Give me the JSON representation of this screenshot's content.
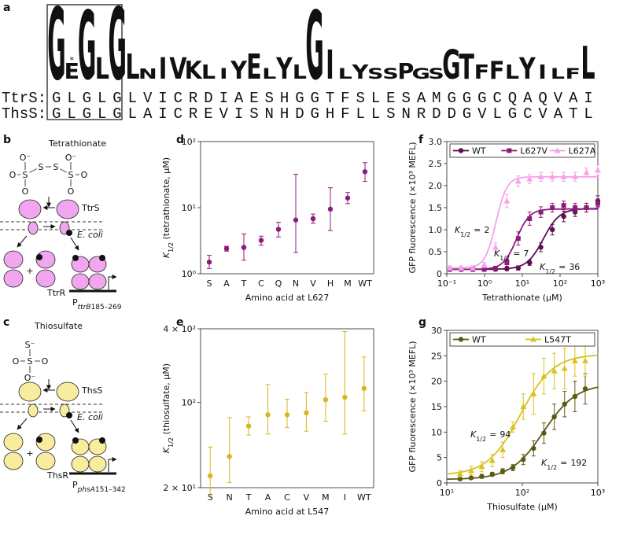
{
  "panel_labels": [
    "a",
    "b",
    "c",
    "d",
    "e",
    "f",
    "g"
  ],
  "sequence_panel": {
    "star": "*",
    "logo": [
      {
        "letter": "G",
        "height": 1.0,
        "color": "#e3dc1c"
      },
      {
        "letter": "E",
        "height": 0.22,
        "color": "#d93a2a"
      },
      {
        "letter": "G",
        "height": 0.95,
        "color": "#e3dc1c"
      },
      {
        "letter": "L",
        "height": 0.3,
        "color": "#e8a428"
      },
      {
        "letter": "G",
        "height": 1.0,
        "color": "#e3dc1c"
      },
      {
        "letter": "L",
        "height": 0.35,
        "color": "#e8a428"
      },
      {
        "letter": "N",
        "height": 0.14,
        "color": "#5a9a5a"
      },
      {
        "letter": "I",
        "height": 0.3,
        "color": "#e8a428"
      },
      {
        "letter": "V",
        "height": 0.3,
        "color": "#e8a428"
      },
      {
        "letter": "K",
        "height": 0.25,
        "color": "#8b3a1a"
      },
      {
        "letter": "L",
        "height": 0.2,
        "color": "#e8a428"
      },
      {
        "letter": "I",
        "height": 0.15,
        "color": "#e8a428"
      },
      {
        "letter": "Y",
        "height": 0.25,
        "color": "#e8a428"
      },
      {
        "letter": "E",
        "height": 0.35,
        "color": "#d93a2a"
      },
      {
        "letter": "L",
        "height": 0.15,
        "color": "#e8a428"
      },
      {
        "letter": "Y",
        "height": 0.3,
        "color": "#1a6a3a"
      },
      {
        "letter": "L",
        "height": 0.2,
        "color": "#e8a428"
      },
      {
        "letter": "G",
        "height": 0.95,
        "color": "#e3dc1c"
      },
      {
        "letter": "I",
        "height": 0.4,
        "color": "#e8a428"
      },
      {
        "letter": "L",
        "height": 0.15,
        "color": "#e8a428"
      },
      {
        "letter": "Y",
        "height": 0.2,
        "color": "#e8a428"
      },
      {
        "letter": "S",
        "height": 0.15,
        "color": "#5a7ac8"
      },
      {
        "letter": "S",
        "height": 0.15,
        "color": "#5a7ac8"
      },
      {
        "letter": "P",
        "height": 0.22,
        "color": "#6a8ad0"
      },
      {
        "letter": "G",
        "height": 0.15,
        "color": "#e3dc1c"
      },
      {
        "letter": "S",
        "height": 0.15,
        "color": "#5a7ac8"
      },
      {
        "letter": "G",
        "height": 0.4,
        "color": "#e3dc1c"
      },
      {
        "letter": "T",
        "height": 0.35,
        "color": "#3aa0b8"
      },
      {
        "letter": "F",
        "height": 0.2,
        "color": "#e8a428"
      },
      {
        "letter": "F",
        "height": 0.25,
        "color": "#9ac83a"
      },
      {
        "letter": "L",
        "height": 0.2,
        "color": "#e8a428"
      },
      {
        "letter": "Y",
        "height": 0.3,
        "color": "#e8a428"
      },
      {
        "letter": "I",
        "height": 0.2,
        "color": "#e8a428"
      },
      {
        "letter": "L",
        "height": 0.15,
        "color": "#e8a428"
      },
      {
        "letter": "F",
        "height": 0.15,
        "color": "#9ac83a"
      },
      {
        "letter": "L",
        "height": 0.45,
        "color": "#e8a428"
      }
    ],
    "rows": [
      {
        "name": "TtrS:",
        "sequence": "GLGLGLVICRDIAESHGGTFSLESAMGGGCQAQVAI"
      },
      {
        "name": "ThsS:",
        "sequence": "GLGLGLAICREVISNHDGHFLLSNRDDGVLGCVATL"
      }
    ]
  },
  "diagrams": [
    {
      "title": "Tetrathionate",
      "color": "#f2a6f0",
      "atoms": [
        "O⁻",
        "O",
        "S",
        "O",
        "S",
        "S",
        "S",
        "O⁻",
        "O",
        "O"
      ],
      "sensor": "TtrS",
      "membrane": "E. coli",
      "plus": "+",
      "regulator": "TtrR",
      "promoter": {
        "prefix": "P",
        "subscript": "ttrB",
        "suffix": "185–269"
      }
    },
    {
      "title": "Thiosulfate",
      "color": "#f8ec9e",
      "atoms": [
        "S⁻",
        "O",
        "S",
        "O",
        "O⁻"
      ],
      "sensor": "ThsS",
      "membrane": "E. coli",
      "plus": "+",
      "regulator": "ThsR",
      "promoter": {
        "prefix": "P",
        "subscript": "phsA",
        "suffix": "151–342"
      }
    }
  ],
  "chart_data": [
    {
      "type": "dot",
      "categories": [
        "S",
        "A",
        "T",
        "C",
        "Q",
        "N",
        "V",
        "H",
        "M",
        "WT"
      ],
      "values": [
        1.5,
        2.4,
        2.5,
        3.2,
        4.7,
        6.5,
        6.8,
        9.5,
        14,
        35
      ],
      "lower": [
        1.2,
        2.2,
        1.6,
        2.7,
        3.6,
        2.1,
        5.8,
        4.5,
        11.5,
        25
      ],
      "upper": [
        1.9,
        2.6,
        4,
        3.7,
        6,
        32,
        8,
        20,
        17,
        48
      ],
      "color": "#8e1b7c",
      "yscale": "log",
      "ylim": [
        1,
        100
      ],
      "yticks": [
        {
          "value": 1,
          "label": "10⁰"
        },
        {
          "value": 10,
          "label": "10¹"
        },
        {
          "value": 100,
          "label": "10²"
        }
      ],
      "xlabel": "Amino acid at L627",
      "ylabel": {
        "symbol": "K",
        "subscript": "1/2",
        "text": " (tetrathionate, µM)"
      }
    },
    {
      "type": "dot",
      "categories": [
        "S",
        "N",
        "T",
        "A",
        "C",
        "V",
        "M",
        "I",
        "WT"
      ],
      "values": [
        25,
        36,
        64,
        79,
        79,
        82,
        105,
        110,
        130
      ],
      "lower": [
        17,
        22,
        54,
        55,
        62,
        58,
        70,
        55,
        85
      ],
      "upper": [
        43,
        75,
        76,
        140,
        106,
        120,
        170,
        380,
        235
      ],
      "color": "#d8b61c",
      "yscale": "log",
      "ylim": [
        20,
        400
      ],
      "yticks": [
        {
          "value": 20,
          "label": "2 × 10¹"
        },
        {
          "value": 100,
          "label": "10²"
        },
        {
          "value": 400,
          "label": "4 × 10²"
        }
      ],
      "xlabel": "Amino acid at L547",
      "ylabel": {
        "symbol": "K",
        "subscript": "1/2",
        "text": " (thiosulfate, µM)"
      }
    },
    {
      "type": "scatter",
      "xscale": "log",
      "xlim": [
        0.1,
        1000
      ],
      "xticks": [
        {
          "value": 0.1,
          "label": "10⁻¹"
        },
        {
          "value": 1,
          "label": "10⁰"
        },
        {
          "value": 10,
          "label": "10¹"
        },
        {
          "value": 100,
          "label": "10²"
        },
        {
          "value": 1000,
          "label": "10³"
        }
      ],
      "ylim": [
        0,
        3
      ],
      "yticks": [
        0,
        0.5,
        {
          "value": 1,
          "label": "1.0"
        },
        1.5,
        {
          "value": 2,
          "label": "2.0"
        },
        2.5,
        {
          "value": 3,
          "label": "3.0"
        }
      ],
      "xlabel": "Tetrathionate (µM)",
      "ylabel": "GFP fluorescence (×10³ MEFL)",
      "legend": "top",
      "x": [
        0.12,
        0.24,
        0.49,
        0.98,
        1.95,
        3.9,
        7.8,
        15.6,
        31,
        62.5,
        125,
        250,
        500,
        1000
      ],
      "series": [
        {
          "name": "WT",
          "color": "#5e0f50",
          "marker": "circle",
          "values": [
            0.1,
            0.1,
            0.1,
            0.1,
            0.1,
            0.11,
            0.13,
            0.25,
            0.6,
            1.0,
            1.3,
            1.4,
            1.5,
            1.65
          ],
          "errors": [
            0.04,
            0.04,
            0.04,
            0.04,
            0.04,
            0.04,
            0.05,
            0.06,
            0.1,
            0.12,
            0.12,
            0.1,
            0.1,
            0.12
          ],
          "fit": {
            "bottom": 0.1,
            "top": 1.48,
            "k": 36,
            "n": 2
          }
        },
        {
          "name": "L627V",
          "color": "#8e1b7c",
          "marker": "square",
          "values": [
            0.1,
            0.1,
            0.1,
            0.1,
            0.12,
            0.25,
            0.8,
            1.25,
            1.4,
            1.5,
            1.55,
            1.5,
            1.5,
            1.6
          ],
          "errors": [
            0.04,
            0.04,
            0.04,
            0.04,
            0.05,
            0.08,
            0.15,
            0.15,
            0.12,
            0.1,
            0.1,
            0.1,
            0.1,
            0.1
          ],
          "fit": {
            "bottom": 0.1,
            "top": 1.47,
            "k": 7,
            "n": 2.5
          }
        },
        {
          "name": "L627A",
          "color": "#f3a2ec",
          "marker": "triangle",
          "values": [
            0.13,
            0.13,
            0.13,
            0.2,
            0.6,
            1.65,
            2.1,
            2.15,
            2.2,
            2.2,
            2.2,
            2.2,
            2.3,
            2.35
          ],
          "errors": [
            0.05,
            0.05,
            0.05,
            0.06,
            0.1,
            0.15,
            0.12,
            0.1,
            0.1,
            0.1,
            0.1,
            0.1,
            0.1,
            0.12
          ],
          "fit": {
            "bottom": 0.13,
            "top": 2.2,
            "k": 2,
            "n": 3
          }
        }
      ],
      "annotations": [
        {
          "symbol": "K",
          "subscript": "1/2",
          "relation": "=",
          "value": 2
        },
        {
          "symbol": "K",
          "subscript": "1/2",
          "relation": "=",
          "value": 7
        },
        {
          "symbol": "K",
          "subscript": "1/2",
          "relation": "=",
          "value": 36
        }
      ]
    },
    {
      "type": "scatter",
      "xscale": "log",
      "xlim": [
        10,
        1000
      ],
      "xticks": [
        {
          "value": 10,
          "label": "10¹"
        },
        {
          "value": 100,
          "label": "10²"
        },
        {
          "value": 1000,
          "label": "10³"
        }
      ],
      "ylim": [
        0,
        30
      ],
      "yticks": [
        0,
        5,
        10,
        15,
        20,
        25,
        30
      ],
      "xlabel": "Thiosulfate (µM)",
      "ylabel": "GFP fluorescence (×10³ MEFL)",
      "legend": "top",
      "x": [
        15,
        21,
        29,
        40,
        55,
        75,
        103,
        141,
        193,
        265,
        363,
        497,
        681
      ],
      "series": [
        {
          "name": "WT",
          "color": "#5c5a14",
          "marker": "circle",
          "values": [
            0.8,
            1.0,
            1.3,
            1.7,
            2.3,
            3.0,
            4.6,
            6.8,
            9.8,
            13,
            15.5,
            17,
            18.5
          ],
          "errors": [
            0.3,
            0.3,
            0.4,
            0.4,
            0.5,
            0.6,
            1,
            1.5,
            2,
            2.5,
            2.5,
            3,
            3
          ],
          "fit": {
            "bottom": 0.7,
            "top": 19.5,
            "k": 192,
            "n": 2
          }
        },
        {
          "name": "L547T",
          "color": "#d8c21c",
          "marker": "triangle",
          "values": [
            1.8,
            2.4,
            3.2,
            4.4,
            6.5,
            11,
            15,
            17.5,
            21,
            22,
            22.5,
            24,
            24
          ],
          "errors": [
            0.6,
            0.8,
            1,
            1.2,
            1.5,
            1,
            2.5,
            4,
            3.5,
            3.5,
            4,
            3,
            3
          ],
          "fit": {
            "bottom": 1.5,
            "top": 25.3,
            "k": 94,
            "n": 2
          }
        }
      ],
      "annotations": [
        {
          "symbol": "K",
          "subscript": "1/2",
          "relation": "=",
          "value": 94
        },
        {
          "symbol": "K",
          "subscript": "1/2",
          "relation": "=",
          "value": 192
        }
      ]
    }
  ]
}
